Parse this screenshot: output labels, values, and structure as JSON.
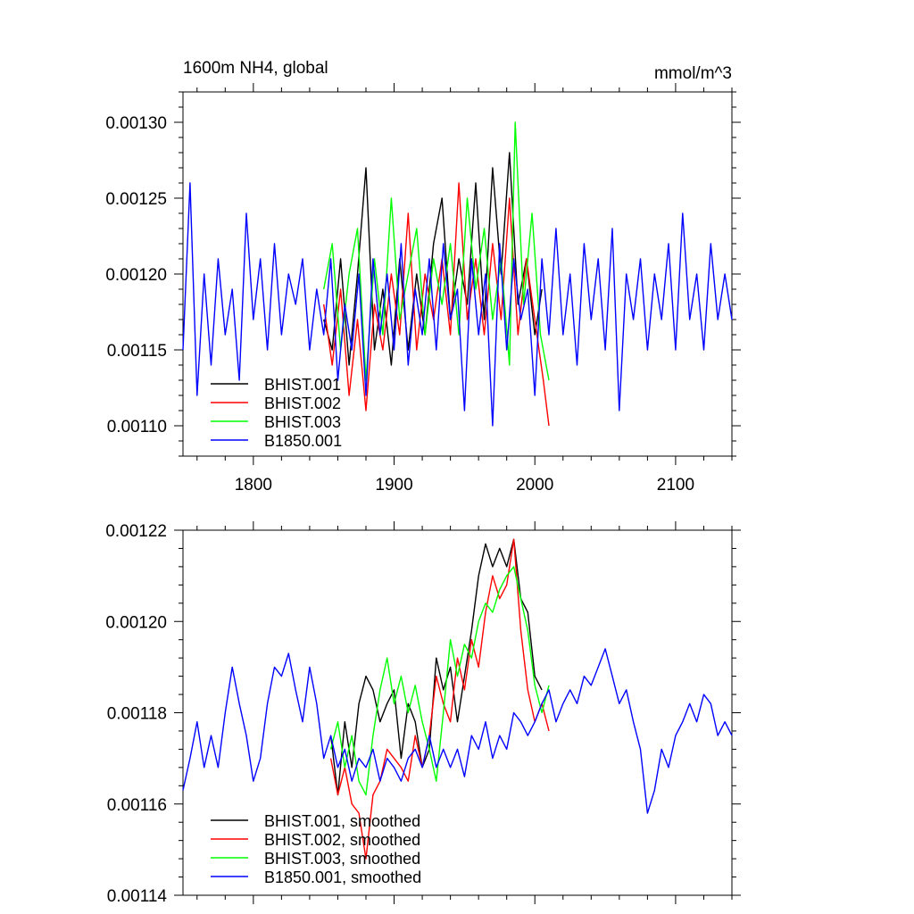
{
  "chart_data": [
    {
      "type": "line",
      "title": "1600m NH4, global",
      "units": "mmol/m^3",
      "xlim": [
        1750,
        2140
      ],
      "ylim": [
        0.00108,
        0.00132
      ],
      "xticks": [
        1800,
        1900,
        2000,
        2100
      ],
      "xtick_labels": [
        "1800",
        "1900",
        "2000",
        "2100"
      ],
      "yticks": [
        0.0011,
        0.00115,
        0.0012,
        0.00125,
        0.0013
      ],
      "ytick_labels": [
        "0.00110",
        "0.00115",
        "0.00120",
        "0.00125",
        "0.00130"
      ],
      "legend_position": "bottom-left",
      "series": [
        {
          "name": "BHIST.001",
          "color": "#000000",
          "x_start": 1850,
          "x_end": 2005,
          "x": [
            1850,
            1856,
            1862,
            1868,
            1874,
            1880,
            1886,
            1892,
            1898,
            1904,
            1910,
            1916,
            1922,
            1928,
            1934,
            1940,
            1946,
            1952,
            1958,
            1964,
            1970,
            1976,
            1982,
            1988,
            1994,
            2000,
            2005
          ],
          "values": [
            0.00117,
            0.00115,
            0.00121,
            0.00114,
            0.0012,
            0.00127,
            0.00115,
            0.00119,
            0.00114,
            0.00121,
            0.00115,
            0.0012,
            0.00116,
            0.00122,
            0.00125,
            0.00117,
            0.00121,
            0.00118,
            0.00126,
            0.00117,
            0.00127,
            0.0012,
            0.00128,
            0.00118,
            0.00121,
            0.00116,
            0.00119
          ]
        },
        {
          "name": "BHIST.002",
          "color": "#ff0000",
          "x_start": 1850,
          "x_end": 2010,
          "x": [
            1850,
            1856,
            1862,
            1868,
            1874,
            1880,
            1886,
            1892,
            1898,
            1904,
            1910,
            1916,
            1922,
            1928,
            1934,
            1940,
            1946,
            1952,
            1958,
            1964,
            1970,
            1976,
            1982,
            1988,
            1994,
            2000,
            2006,
            2010
          ],
          "values": [
            0.00118,
            0.00114,
            0.00119,
            0.00112,
            0.00117,
            0.00111,
            0.00118,
            0.00115,
            0.0012,
            0.00116,
            0.00124,
            0.00115,
            0.0012,
            0.00117,
            0.00121,
            0.00116,
            0.00126,
            0.00117,
            0.00121,
            0.00116,
            0.00122,
            0.00117,
            0.00125,
            0.00116,
            0.00121,
            0.00117,
            0.00113,
            0.0011
          ]
        },
        {
          "name": "BHIST.003",
          "color": "#00ff00",
          "x_start": 1850,
          "x_end": 2010,
          "x": [
            1850,
            1856,
            1862,
            1868,
            1874,
            1880,
            1886,
            1892,
            1898,
            1904,
            1910,
            1916,
            1922,
            1928,
            1934,
            1940,
            1946,
            1952,
            1958,
            1964,
            1970,
            1976,
            1982,
            1986,
            1992,
            1998,
            2004,
            2010
          ],
          "values": [
            0.00119,
            0.00122,
            0.00115,
            0.0012,
            0.00123,
            0.00113,
            0.00121,
            0.00116,
            0.00125,
            0.00117,
            0.0012,
            0.00123,
            0.00116,
            0.00121,
            0.00118,
            0.00122,
            0.00116,
            0.00125,
            0.00119,
            0.00123,
            0.00117,
            0.00121,
            0.00114,
            0.0013,
            0.00118,
            0.00124,
            0.00116,
            0.00113
          ]
        },
        {
          "name": "B1850.001",
          "color": "#0000ff",
          "x_start": 1750,
          "x_end": 2140,
          "x": [
            1750,
            1755,
            1760,
            1765,
            1770,
            1775,
            1780,
            1785,
            1790,
            1795,
            1800,
            1805,
            1810,
            1815,
            1820,
            1825,
            1830,
            1835,
            1840,
            1845,
            1850,
            1855,
            1860,
            1865,
            1870,
            1875,
            1880,
            1885,
            1890,
            1895,
            1900,
            1905,
            1910,
            1915,
            1920,
            1925,
            1930,
            1935,
            1940,
            1945,
            1950,
            1955,
            1960,
            1965,
            1970,
            1975,
            1980,
            1985,
            1990,
            1995,
            2000,
            2005,
            2010,
            2015,
            2020,
            2025,
            2030,
            2035,
            2040,
            2045,
            2050,
            2055,
            2060,
            2065,
            2070,
            2075,
            2080,
            2085,
            2090,
            2095,
            2100,
            2105,
            2110,
            2115,
            2120,
            2125,
            2130,
            2135,
            2140
          ],
          "values": [
            0.00115,
            0.00126,
            0.00112,
            0.0012,
            0.00114,
            0.00121,
            0.00116,
            0.00119,
            0.00113,
            0.00124,
            0.00117,
            0.00121,
            0.00115,
            0.00122,
            0.00116,
            0.0012,
            0.00118,
            0.00121,
            0.00115,
            0.00119,
            0.00116,
            0.00121,
            0.00113,
            0.00118,
            0.00115,
            0.0012,
            0.00112,
            0.00121,
            0.00116,
            0.0012,
            0.00115,
            0.00122,
            0.00114,
            0.00119,
            0.00116,
            0.00121,
            0.00115,
            0.00122,
            0.00117,
            0.00119,
            0.00111,
            0.00121,
            0.00116,
            0.0012,
            0.0011,
            0.00122,
            0.00115,
            0.00121,
            0.00117,
            0.00119,
            0.00112,
            0.00121,
            0.00116,
            0.00123,
            0.00116,
            0.0012,
            0.00114,
            0.00122,
            0.00117,
            0.00121,
            0.00115,
            0.00123,
            0.00111,
            0.0012,
            0.00117,
            0.00121,
            0.00115,
            0.0012,
            0.00117,
            0.00122,
            0.00115,
            0.00124,
            0.00117,
            0.0012,
            0.00115,
            0.00122,
            0.00117,
            0.0012,
            0.00117
          ]
        }
      ]
    },
    {
      "type": "line",
      "xlim": [
        1750,
        2140
      ],
      "ylim": [
        0.00114,
        0.00122
      ],
      "xticks": [
        1800,
        1900,
        2000,
        2100
      ],
      "yticks": [
        0.00114,
        0.00116,
        0.00118,
        0.0012,
        0.00122
      ],
      "ytick_labels": [
        "0.00114",
        "0.00116",
        "0.00118",
        "0.00120",
        "0.00122"
      ],
      "legend_position": "bottom-left",
      "series": [
        {
          "name": "BHIST.001, smoothed",
          "color": "#000000",
          "x": [
            1855,
            1860,
            1865,
            1870,
            1875,
            1880,
            1885,
            1890,
            1895,
            1900,
            1905,
            1910,
            1915,
            1920,
            1925,
            1930,
            1935,
            1940,
            1945,
            1950,
            1955,
            1960,
            1965,
            1970,
            1975,
            1980,
            1985,
            1990,
            1995,
            2000,
            2005
          ],
          "values": [
            0.001175,
            0.001162,
            0.001178,
            0.001168,
            0.001182,
            0.001188,
            0.001185,
            0.001178,
            0.001182,
            0.001185,
            0.00117,
            0.001182,
            0.001178,
            0.001168,
            0.001172,
            0.001192,
            0.001185,
            0.00119,
            0.001178,
            0.001188,
            0.001198,
            0.00121,
            0.001217,
            0.001212,
            0.001216,
            0.001212,
            0.001218,
            0.001205,
            0.001202,
            0.001188,
            0.001185
          ]
        },
        {
          "name": "BHIST.002, smoothed",
          "color": "#ff0000",
          "x": [
            1855,
            1860,
            1865,
            1870,
            1875,
            1880,
            1885,
            1890,
            1895,
            1900,
            1905,
            1910,
            1915,
            1920,
            1925,
            1930,
            1935,
            1940,
            1945,
            1950,
            1955,
            1960,
            1965,
            1970,
            1975,
            1980,
            1985,
            1990,
            1995,
            2000,
            2005,
            2010
          ],
          "values": [
            0.00117,
            0.001162,
            0.001168,
            0.00116,
            0.001158,
            0.001148,
            0.001162,
            0.001165,
            0.001172,
            0.00117,
            0.001168,
            0.001165,
            0.001175,
            0.001168,
            0.001175,
            0.001188,
            0.001182,
            0.001178,
            0.001192,
            0.001185,
            0.001196,
            0.00119,
            0.001202,
            0.00121,
            0.001205,
            0.001208,
            0.001218,
            0.001198,
            0.001185,
            0.001178,
            0.001182,
            0.001176
          ]
        },
        {
          "name": "BHIST.003, smoothed",
          "color": "#00ff00",
          "x": [
            1855,
            1860,
            1865,
            1870,
            1875,
            1880,
            1885,
            1890,
            1895,
            1900,
            1905,
            1910,
            1915,
            1920,
            1925,
            1930,
            1935,
            1940,
            1945,
            1950,
            1955,
            1960,
            1965,
            1970,
            1975,
            1980,
            1985,
            1990,
            1995,
            2000,
            2005,
            2010
          ],
          "values": [
            0.001172,
            0.001178,
            0.001168,
            0.001175,
            0.001165,
            0.001162,
            0.001175,
            0.001185,
            0.001192,
            0.001182,
            0.001188,
            0.00118,
            0.001186,
            0.001178,
            0.001172,
            0.001165,
            0.00118,
            0.001196,
            0.001188,
            0.001195,
            0.001192,
            0.0012,
            0.001204,
            0.001202,
            0.001207,
            0.00121,
            0.001212,
            0.001205,
            0.001198,
            0.001186,
            0.00118,
            0.001186
          ]
        },
        {
          "name": "B1850.001, smoothed",
          "color": "#0000ff",
          "x": [
            1750,
            1755,
            1760,
            1765,
            1770,
            1775,
            1780,
            1785,
            1790,
            1795,
            1800,
            1805,
            1810,
            1815,
            1820,
            1825,
            1830,
            1835,
            1840,
            1845,
            1850,
            1855,
            1860,
            1865,
            1870,
            1875,
            1880,
            1885,
            1890,
            1895,
            1900,
            1905,
            1910,
            1915,
            1920,
            1925,
            1930,
            1935,
            1940,
            1945,
            1950,
            1955,
            1960,
            1965,
            1970,
            1975,
            1980,
            1985,
            1990,
            1995,
            2000,
            2005,
            2010,
            2015,
            2020,
            2025,
            2030,
            2035,
            2040,
            2045,
            2050,
            2055,
            2060,
            2065,
            2070,
            2075,
            2080,
            2085,
            2090,
            2095,
            2100,
            2105,
            2110,
            2115,
            2120,
            2125,
            2130,
            2135,
            2140
          ],
          "values": [
            0.001163,
            0.00117,
            0.001178,
            0.001168,
            0.001175,
            0.001168,
            0.00118,
            0.00119,
            0.001182,
            0.001175,
            0.001165,
            0.00117,
            0.001182,
            0.00119,
            0.001188,
            0.001193,
            0.001185,
            0.001178,
            0.00119,
            0.001182,
            0.00117,
            0.001175,
            0.001168,
            0.001172,
            0.001165,
            0.00117,
            0.001168,
            0.001172,
            0.001165,
            0.00117,
            0.001168,
            0.001165,
            0.00117,
            0.001172,
            0.001168,
            0.001175,
            0.001168,
            0.001172,
            0.001168,
            0.001172,
            0.001166,
            0.001175,
            0.001172,
            0.001178,
            0.00117,
            0.001175,
            0.001172,
            0.00118,
            0.001178,
            0.001175,
            0.001178,
            0.001182,
            0.001185,
            0.001178,
            0.001182,
            0.001185,
            0.001182,
            0.001188,
            0.001186,
            0.00119,
            0.001194,
            0.001188,
            0.001182,
            0.001185,
            0.001178,
            0.001172,
            0.001158,
            0.001163,
            0.001172,
            0.001168,
            0.001175,
            0.001178,
            0.001182,
            0.001178,
            0.001184,
            0.001182,
            0.001175,
            0.001178,
            0.001175
          ]
        }
      ]
    }
  ]
}
